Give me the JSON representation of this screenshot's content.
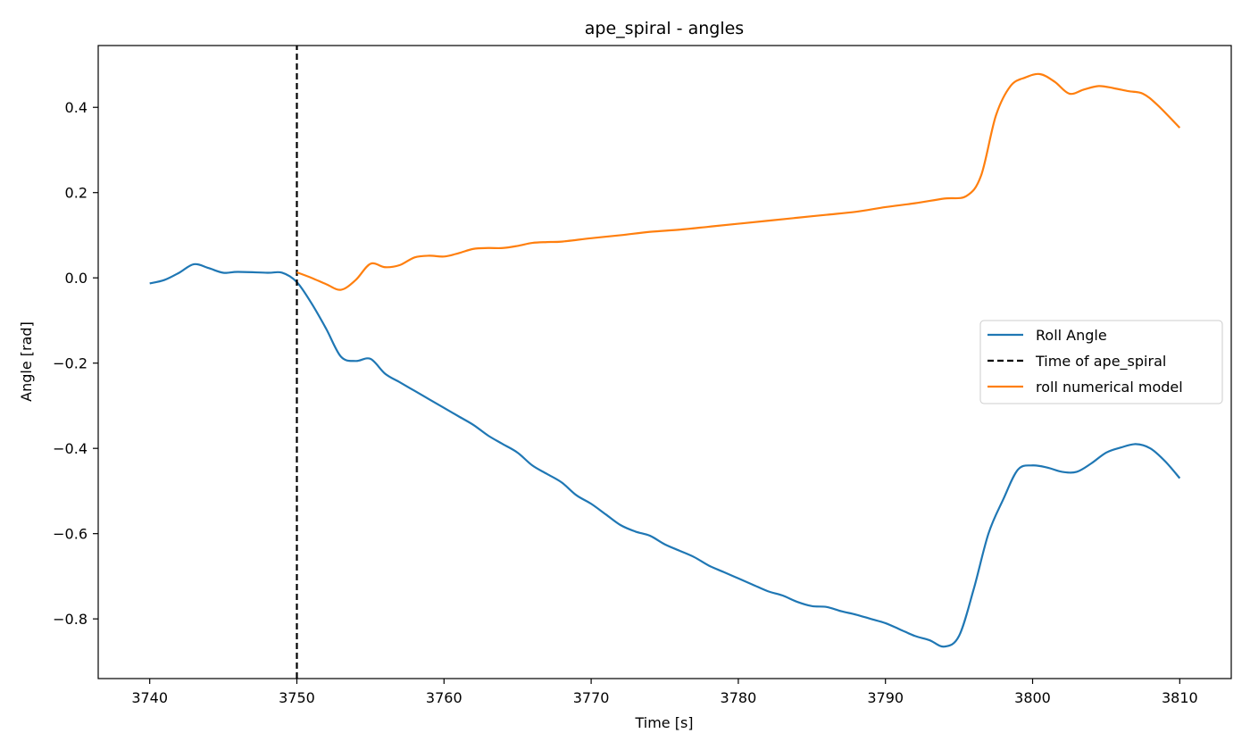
{
  "chart_data": {
    "type": "line",
    "title": "ape_spiral - angles",
    "xlabel": "Time [s]",
    "ylabel": "Angle [rad]",
    "xlim": [
      3736.5,
      3813.5
    ],
    "ylim": [
      -0.94,
      0.545
    ],
    "xticks": [
      3740,
      3750,
      3760,
      3770,
      3780,
      3790,
      3800,
      3810
    ],
    "xtick_labels": [
      "3740",
      "3750",
      "3760",
      "3770",
      "3780",
      "3790",
      "3800",
      "3810"
    ],
    "yticks": [
      0.4,
      0.2,
      0.0,
      -0.2,
      -0.4,
      -0.6,
      -0.8
    ],
    "ytick_labels": [
      "0.4",
      "0.2",
      "0.0",
      "−0.2",
      "−0.4",
      "−0.6",
      "−0.8"
    ],
    "grid": false,
    "legend_position": "center-right",
    "series": [
      {
        "name": "Roll Angle",
        "color": "#1f77b4",
        "style": "solid",
        "x": [
          3740,
          3741,
          3742,
          3743,
          3744,
          3745,
          3746,
          3748,
          3749,
          3750,
          3751,
          3752,
          3753,
          3754,
          3755,
          3756,
          3757,
          3758,
          3759,
          3760,
          3761,
          3762,
          3763,
          3764,
          3765,
          3766,
          3767,
          3768,
          3769,
          3770,
          3771,
          3772,
          3773,
          3774,
          3775,
          3776,
          3777,
          3778,
          3779,
          3780,
          3781,
          3782,
          3783,
          3784,
          3785,
          3786,
          3787,
          3788,
          3789,
          3790,
          3791,
          3792,
          3793,
          3794,
          3795,
          3796,
          3797,
          3798,
          3799,
          3800,
          3801,
          3802,
          3803,
          3804,
          3805,
          3806,
          3807,
          3808,
          3809,
          3810
        ],
        "y": [
          -0.013,
          -0.005,
          0.012,
          0.032,
          0.023,
          0.012,
          0.014,
          0.012,
          0.012,
          -0.01,
          -0.06,
          -0.12,
          -0.185,
          -0.195,
          -0.19,
          -0.225,
          -0.245,
          -0.265,
          -0.285,
          -0.305,
          -0.325,
          -0.345,
          -0.37,
          -0.39,
          -0.41,
          -0.44,
          -0.46,
          -0.48,
          -0.51,
          -0.53,
          -0.555,
          -0.58,
          -0.595,
          -0.605,
          -0.625,
          -0.64,
          -0.655,
          -0.675,
          -0.69,
          -0.705,
          -0.72,
          -0.735,
          -0.745,
          -0.76,
          -0.77,
          -0.772,
          -0.782,
          -0.79,
          -0.8,
          -0.81,
          -0.825,
          -0.84,
          -0.85,
          -0.865,
          -0.84,
          -0.73,
          -0.6,
          -0.52,
          -0.45,
          -0.44,
          -0.445,
          -0.455,
          -0.455,
          -0.435,
          -0.41,
          -0.398,
          -0.39,
          -0.4,
          -0.43,
          -0.47
        ]
      },
      {
        "name": "Time of ape_spiral",
        "color": "#000000",
        "style": "dashed",
        "x": [
          3750,
          3750
        ],
        "y": [
          -0.94,
          0.545
        ]
      },
      {
        "name": "roll numerical model",
        "color": "#ff7f0e",
        "style": "solid",
        "x": [
          3750,
          3751,
          3752,
          3753,
          3754,
          3755,
          3756,
          3757,
          3758,
          3759,
          3760,
          3761,
          3762,
          3763,
          3764,
          3765,
          3766,
          3767,
          3768,
          3770,
          3772,
          3774,
          3776,
          3778,
          3780,
          3782,
          3784,
          3786,
          3788,
          3790,
          3792,
          3794,
          3795.5,
          3796.5,
          3797.5,
          3798.5,
          3799.5,
          3800.5,
          3801.5,
          3802.5,
          3803.5,
          3804.5,
          3805.5,
          3806.5,
          3807.5,
          3808.5,
          3810
        ],
        "y": [
          0.013,
          0.0,
          -0.015,
          -0.028,
          -0.005,
          0.033,
          0.025,
          0.03,
          0.048,
          0.052,
          0.05,
          0.058,
          0.068,
          0.07,
          0.07,
          0.075,
          0.082,
          0.084,
          0.085,
          0.093,
          0.1,
          0.108,
          0.113,
          0.12,
          0.127,
          0.134,
          0.141,
          0.148,
          0.155,
          0.166,
          0.175,
          0.186,
          0.192,
          0.24,
          0.38,
          0.45,
          0.47,
          0.478,
          0.46,
          0.432,
          0.442,
          0.45,
          0.445,
          0.438,
          0.432,
          0.405,
          0.352
        ]
      }
    ]
  }
}
